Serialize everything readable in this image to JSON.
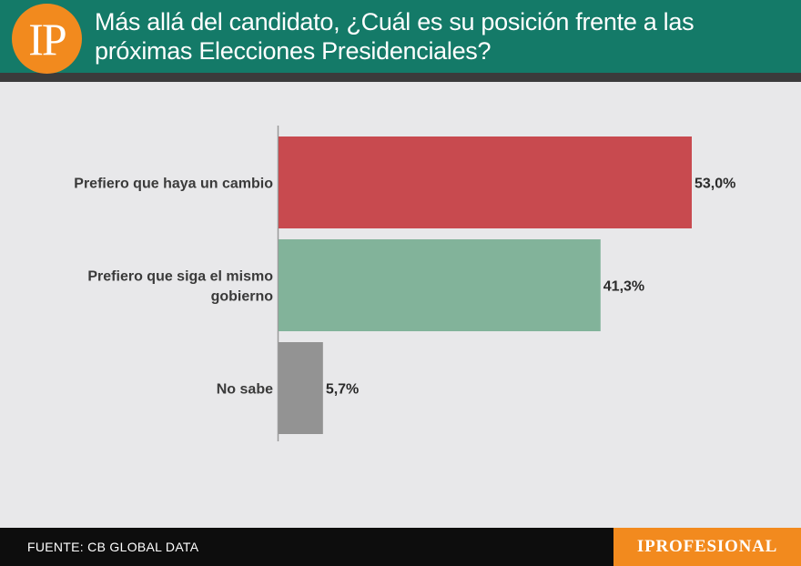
{
  "header": {
    "logo_text": "IP",
    "title_line1": "Más allá del candidato, ¿Cuál es su posición frente a las",
    "title_line2": "próximas Elecciones Presidenciales?"
  },
  "footer": {
    "source": "FUENTE: CB GLOBAL DATA",
    "brand": "IPROFESIONAL"
  },
  "colors": {
    "header_bg": "#147a68",
    "logo_bg": "#f28a1e",
    "bar_cambio": "#c84a4f",
    "bar_mismo": "#82b39a",
    "bar_nosabe": "#939393"
  },
  "chart_data": {
    "type": "bar",
    "orientation": "horizontal",
    "title": "",
    "xlabel": "",
    "ylabel": "",
    "xlim": [
      0,
      53.0
    ],
    "categories": [
      [
        "Prefiero que haya un cambio"
      ],
      [
        "Prefiero que siga el mismo",
        "gobierno"
      ],
      [
        "No sabe"
      ]
    ],
    "values": [
      53.0,
      41.3,
      5.7
    ],
    "value_labels": [
      "53,0%",
      "41,3%",
      "5,7%"
    ],
    "colors": [
      "#c84a4f",
      "#82b39a",
      "#939393"
    ],
    "grid": false,
    "legend": "none"
  }
}
